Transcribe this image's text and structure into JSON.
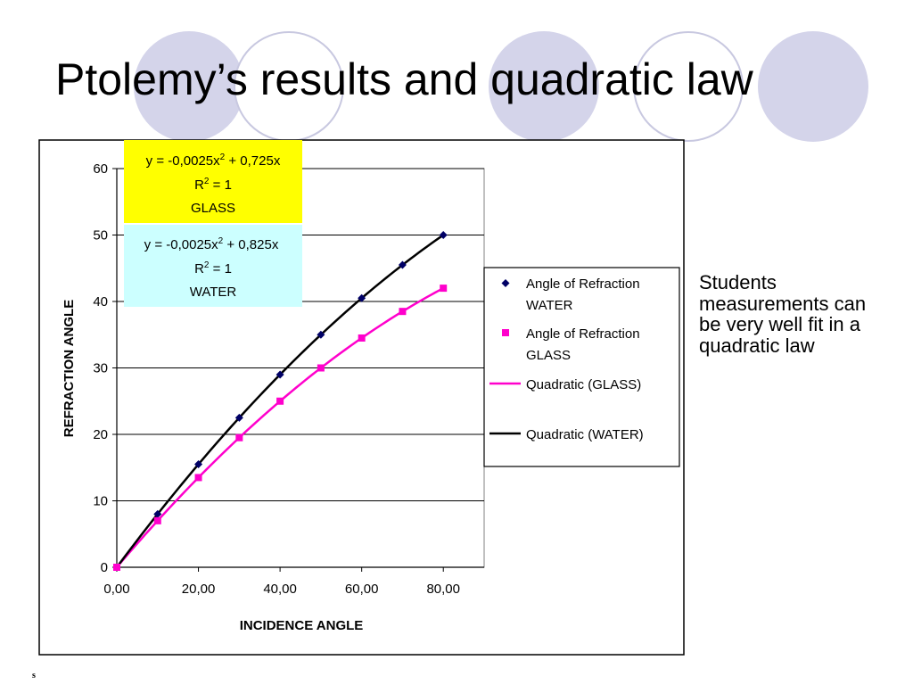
{
  "slide": {
    "title": "Ptolemy’s results and quadratic law",
    "note": "Students measurements can be very well fit in a quadratic law",
    "footnote": "s"
  },
  "colors": {
    "water": "#000066",
    "glass": "#ff00cc",
    "water_fit": "#000000",
    "glass_fit": "#ff00cc",
    "water_box": "#ccffff",
    "glass_box": "#ffff00",
    "deco_fill": "#d4d4ea"
  },
  "chart_data": {
    "type": "scatter",
    "xlabel": "INCIDENCE ANGLE",
    "ylabel": "REFRACTION ANGLE",
    "xlim": [
      0,
      90
    ],
    "ylim": [
      0,
      60
    ],
    "x_ticks": [
      "0,00",
      "20,00",
      "40,00",
      "60,00",
      "80,00"
    ],
    "y_ticks": [
      "0",
      "10",
      "20",
      "30",
      "40",
      "50",
      "60"
    ],
    "grid": "horizontal",
    "legend_position": "right",
    "x": [
      0,
      10,
      20,
      30,
      40,
      50,
      60,
      70,
      80
    ],
    "series": [
      {
        "name": "Angle of Refraction WATER",
        "values": [
          0,
          8,
          15.5,
          22.5,
          29,
          35,
          40.5,
          45.5,
          50
        ],
        "marker": "diamond"
      },
      {
        "name": "Angle of Refraction GLASS",
        "values": [
          0,
          7,
          13.5,
          19.5,
          25,
          30,
          34.5,
          38.5,
          42
        ],
        "marker": "square"
      }
    ],
    "fits": [
      {
        "name": "Quadratic (GLASS)",
        "a": -0.0025,
        "b": 0.725
      },
      {
        "name": "Quadratic (WATER)",
        "a": -0.0025,
        "b": 0.825
      }
    ],
    "annotations": {
      "glass_eq": {
        "pre": "y = -0,0025x",
        "sup": "2",
        "post": " + 0,725x",
        "r2_pre": "R",
        "r2_sup": "2",
        "r2_post": " = 1",
        "label": "GLASS"
      },
      "water_eq": {
        "pre": "y = -0,0025x",
        "sup": "2",
        "post": " + 0,825x",
        "r2_pre": "R",
        "r2_sup": "2",
        "r2_post": " = 1",
        "label": "WATER"
      }
    },
    "legend": {
      "water_line1": "Angle of Refraction",
      "water_line2": "WATER",
      "glass_line1": "Angle of Refraction",
      "glass_line2": "GLASS",
      "glass_fit": "Quadratic (GLASS)",
      "water_fit": "Quadratic (WATER)"
    }
  }
}
